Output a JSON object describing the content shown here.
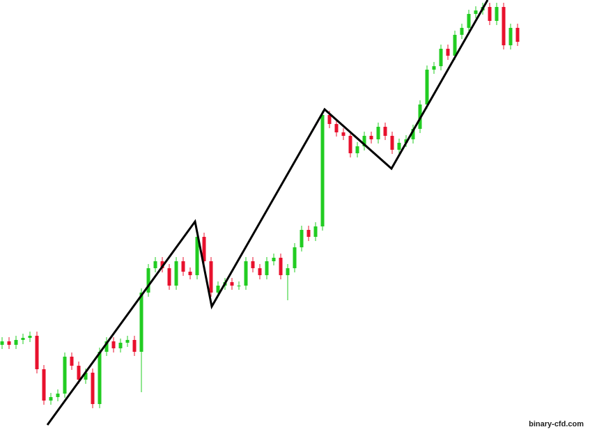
{
  "chart_data": {
    "type": "candlestick",
    "up_color": "#22cc22",
    "down_color": "#e8112d",
    "line_color": "#000000",
    "ylim": [
      0,
      623
    ],
    "open": [
      128,
      133,
      128,
      135,
      138,
      141,
      93,
      48,
      53,
      58,
      111,
      98,
      78,
      88,
      43,
      118,
      133,
      123,
      131,
      135,
      118,
      203,
      238,
      248,
      238,
      213,
      248,
      233,
      228,
      283,
      248,
      203,
      213,
      218,
      213,
      213,
      248,
      238,
      228,
      248,
      253,
      228,
      238,
      268,
      293,
      283,
      298,
      458,
      445,
      433,
      428,
      403,
      413,
      428,
      423,
      441,
      428,
      408,
      418,
      423,
      438,
      473,
      523,
      528,
      553,
      543,
      573,
      583,
      603,
      608,
      613,
      593,
      613,
      558,
      583
    ],
    "high": [
      139,
      139,
      141,
      144,
      147,
      147,
      99,
      59,
      64,
      117,
      117,
      104,
      94,
      94,
      124,
      139,
      139,
      137,
      141,
      141,
      209,
      244,
      254,
      254,
      244,
      254,
      254,
      239,
      289,
      289,
      254,
      219,
      224,
      224,
      219,
      254,
      254,
      244,
      254,
      259,
      259,
      244,
      274,
      299,
      299,
      304,
      464,
      464,
      451,
      439,
      434,
      419,
      434,
      434,
      447,
      447,
      434,
      424,
      429,
      444,
      479,
      529,
      534,
      559,
      559,
      579,
      589,
      609,
      614,
      619,
      619,
      619,
      619,
      589,
      589
    ],
    "low": [
      122,
      122,
      122,
      129,
      132,
      87,
      42,
      42,
      47,
      52,
      92,
      72,
      72,
      37,
      37,
      112,
      117,
      117,
      125,
      112,
      60,
      197,
      232,
      232,
      207,
      207,
      227,
      222,
      222,
      242,
      197,
      197,
      207,
      207,
      207,
      207,
      232,
      222,
      222,
      242,
      222,
      192,
      232,
      262,
      277,
      277,
      292,
      439,
      427,
      422,
      397,
      397,
      407,
      417,
      417,
      422,
      402,
      402,
      412,
      417,
      432,
      467,
      517,
      522,
      537,
      537,
      567,
      577,
      597,
      602,
      587,
      587,
      552,
      552,
      557
    ],
    "close": [
      133,
      128,
      135,
      138,
      141,
      93,
      48,
      53,
      58,
      111,
      98,
      78,
      88,
      43,
      118,
      133,
      123,
      131,
      135,
      118,
      203,
      238,
      248,
      238,
      213,
      248,
      233,
      228,
      283,
      248,
      203,
      213,
      218,
      213,
      213,
      248,
      238,
      228,
      248,
      253,
      228,
      238,
      268,
      293,
      283,
      298,
      458,
      445,
      433,
      428,
      403,
      413,
      428,
      423,
      441,
      428,
      408,
      418,
      423,
      438,
      473,
      523,
      528,
      553,
      543,
      573,
      583,
      603,
      608,
      613,
      593,
      613,
      558,
      583,
      563
    ],
    "trend_line": {
      "x": [
        6.5,
        27.7,
        30.1,
        46.3,
        55.9,
        69.7
      ],
      "values": [
        13,
        305,
        183,
        466,
        381,
        623
      ]
    },
    "watermark": "binary-cfd.com"
  }
}
